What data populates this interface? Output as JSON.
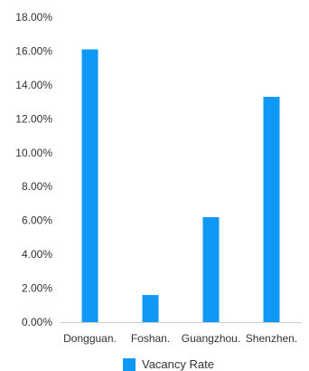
{
  "chart_data": {
    "type": "bar",
    "categories": [
      "Dongguan.",
      "Foshan.",
      "Guangzhou.",
      "Shenzhen."
    ],
    "series": [
      {
        "name": "Vacancy Rate",
        "values": [
          16.1,
          1.6,
          6.2,
          13.3
        ]
      }
    ],
    "title": "",
    "xlabel": "",
    "ylabel": "",
    "ylim": [
      0,
      18
    ],
    "yticks": [
      "0.00%",
      "2.00%",
      "4.00%",
      "6.00%",
      "8.00%",
      "10.00%",
      "12.00%",
      "14.00%",
      "16.00%",
      "18.00%"
    ],
    "grid": false,
    "legend_position": "bottom",
    "colors": {
      "bar": "#1098F7",
      "axis": "#cccccc",
      "text": "#333333"
    }
  }
}
